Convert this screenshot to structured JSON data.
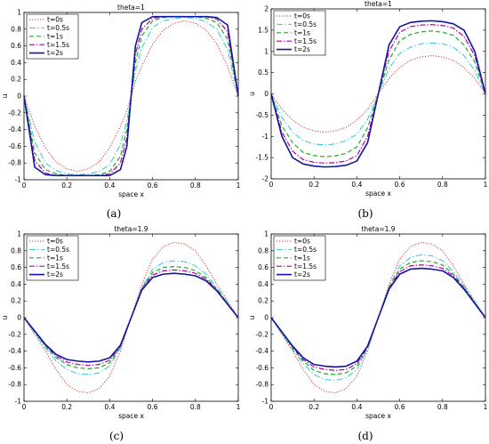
{
  "legend_entries": [
    "t=0s",
    "t=0.5s",
    "t=1s",
    "t=1.5s",
    "t=2s"
  ],
  "series_colors": [
    "#cc3333",
    "#2ec5e0",
    "#22aa22",
    "#b000b0",
    "#1414a0"
  ],
  "chart_data": [
    {
      "type": "line",
      "caption": "(a)",
      "title": "theta=1",
      "xlabel": "space x",
      "ylabel": "u",
      "xlim": [
        0,
        1
      ],
      "ylim": [
        -1,
        1
      ],
      "xticks": [
        "0",
        "0.2",
        "0.4",
        "0.6",
        "0.8",
        "1"
      ],
      "yticks": [
        "-1",
        "-0.8",
        "-0.6",
        "-0.4",
        "-0.2",
        "0",
        "0.2",
        "0.4",
        "0.6",
        "0.8",
        "1"
      ],
      "legend_position": "top-left",
      "x": [
        0,
        0.05,
        0.1,
        0.15,
        0.2,
        0.25,
        0.3,
        0.35,
        0.4,
        0.45,
        0.48,
        0.5,
        0.52,
        0.55,
        0.6,
        0.65,
        0.7,
        0.75,
        0.8,
        0.85,
        0.9,
        0.95,
        1
      ],
      "series": [
        {
          "name": "t=0s",
          "values": [
            0,
            -0.36,
            -0.62,
            -0.79,
            -0.87,
            -0.9,
            -0.87,
            -0.79,
            -0.62,
            -0.36,
            -0.18,
            0,
            0.18,
            0.36,
            0.62,
            0.79,
            0.87,
            0.9,
            0.87,
            0.79,
            0.62,
            0.36,
            0
          ]
        },
        {
          "name": "t=0.5s",
          "values": [
            0,
            -0.55,
            -0.8,
            -0.89,
            -0.93,
            -0.94,
            -0.93,
            -0.9,
            -0.82,
            -0.58,
            -0.3,
            0,
            0.3,
            0.58,
            0.82,
            0.9,
            0.93,
            0.94,
            0.93,
            0.89,
            0.8,
            0.55,
            0
          ]
        },
        {
          "name": "t=1s",
          "values": [
            0,
            -0.68,
            -0.88,
            -0.93,
            -0.95,
            -0.95,
            -0.95,
            -0.94,
            -0.9,
            -0.72,
            -0.4,
            0,
            0.4,
            0.72,
            0.9,
            0.94,
            0.95,
            0.95,
            0.95,
            0.93,
            0.88,
            0.68,
            0
          ]
        },
        {
          "name": "t=1.5s",
          "values": [
            0,
            -0.77,
            -0.92,
            -0.95,
            -0.95,
            -0.95,
            -0.95,
            -0.95,
            -0.93,
            -0.8,
            -0.5,
            0,
            0.5,
            0.8,
            0.93,
            0.95,
            0.95,
            0.95,
            0.95,
            0.95,
            0.92,
            0.77,
            0
          ]
        },
        {
          "name": "t=2s",
          "values": [
            0,
            -0.85,
            -0.94,
            -0.95,
            -0.95,
            -0.95,
            -0.95,
            -0.95,
            -0.95,
            -0.88,
            -0.6,
            0,
            0.6,
            0.88,
            0.95,
            0.95,
            0.95,
            0.95,
            0.95,
            0.95,
            0.94,
            0.85,
            0
          ]
        }
      ]
    },
    {
      "type": "line",
      "caption": "(b)",
      "title": "theta=1",
      "xlabel": "space x",
      "ylabel": "u",
      "xlim": [
        0,
        1
      ],
      "ylim": [
        -2,
        2
      ],
      "xticks": [
        "0",
        "0.2",
        "0.4",
        "0.6",
        "0.8",
        "1"
      ],
      "yticks": [
        "-2",
        "-1.5",
        "-1",
        "-0.5",
        "0",
        "0.5",
        "1",
        "1.5",
        "2"
      ],
      "legend_position": "top-left",
      "x": [
        0,
        0.05,
        0.1,
        0.15,
        0.2,
        0.25,
        0.3,
        0.35,
        0.4,
        0.45,
        0.5,
        0.55,
        0.6,
        0.65,
        0.7,
        0.75,
        0.8,
        0.85,
        0.9,
        0.95,
        1
      ],
      "series": [
        {
          "name": "t=0s",
          "values": [
            0,
            -0.36,
            -0.62,
            -0.79,
            -0.87,
            -0.9,
            -0.87,
            -0.79,
            -0.62,
            -0.36,
            0,
            0.36,
            0.62,
            0.79,
            0.87,
            0.9,
            0.87,
            0.79,
            0.62,
            0.36,
            0
          ]
        },
        {
          "name": "t=0.5s",
          "values": [
            0,
            -0.55,
            -0.9,
            -1.1,
            -1.18,
            -1.2,
            -1.18,
            -1.1,
            -0.95,
            -0.6,
            0,
            0.6,
            0.95,
            1.1,
            1.18,
            1.2,
            1.18,
            1.1,
            0.9,
            0.55,
            0
          ]
        },
        {
          "name": "t=1s",
          "values": [
            0,
            -0.75,
            -1.15,
            -1.38,
            -1.45,
            -1.48,
            -1.46,
            -1.4,
            -1.25,
            -0.8,
            0,
            0.8,
            1.25,
            1.4,
            1.46,
            1.48,
            1.45,
            1.38,
            1.15,
            0.75,
            0
          ]
        },
        {
          "name": "t=1.5s",
          "values": [
            0,
            -0.9,
            -1.35,
            -1.55,
            -1.61,
            -1.63,
            -1.62,
            -1.58,
            -1.45,
            -1.0,
            0,
            1.0,
            1.45,
            1.58,
            1.62,
            1.63,
            1.61,
            1.55,
            1.35,
            0.9,
            0
          ]
        },
        {
          "name": "t=2s",
          "values": [
            0,
            -1.0,
            -1.5,
            -1.65,
            -1.7,
            -1.72,
            -1.71,
            -1.68,
            -1.58,
            -1.15,
            0,
            1.15,
            1.58,
            1.68,
            1.71,
            1.72,
            1.7,
            1.65,
            1.5,
            1.0,
            0
          ]
        }
      ]
    },
    {
      "type": "line",
      "caption": "(c)",
      "title": "theta=1.9",
      "xlabel": "space x",
      "ylabel": "u",
      "xlim": [
        0,
        1
      ],
      "ylim": [
        -1,
        1
      ],
      "xticks": [
        "0",
        "0.2",
        "0.4",
        "0.6",
        "0.8",
        "1"
      ],
      "yticks": [
        "-1",
        "-0.8",
        "-0.6",
        "-0.4",
        "-0.2",
        "0",
        "0.2",
        "0.4",
        "0.6",
        "0.8",
        "1"
      ],
      "legend_position": "top-left",
      "x": [
        0,
        0.05,
        0.1,
        0.15,
        0.2,
        0.25,
        0.3,
        0.35,
        0.4,
        0.45,
        0.5,
        0.55,
        0.6,
        0.65,
        0.7,
        0.75,
        0.8,
        0.85,
        0.9,
        0.95,
        1
      ],
      "series": [
        {
          "name": "t=0s",
          "values": [
            0,
            -0.2,
            -0.4,
            -0.62,
            -0.8,
            -0.88,
            -0.9,
            -0.85,
            -0.7,
            -0.4,
            0,
            0.4,
            0.7,
            0.85,
            0.9,
            0.88,
            0.8,
            0.62,
            0.4,
            0.2,
            0
          ]
        },
        {
          "name": "t=0.5s",
          "values": [
            0,
            -0.18,
            -0.36,
            -0.52,
            -0.62,
            -0.67,
            -0.68,
            -0.66,
            -0.58,
            -0.36,
            0,
            0.36,
            0.58,
            0.66,
            0.68,
            0.67,
            0.62,
            0.52,
            0.36,
            0.18,
            0
          ]
        },
        {
          "name": "t=1s",
          "values": [
            0,
            -0.17,
            -0.34,
            -0.48,
            -0.56,
            -0.6,
            -0.61,
            -0.6,
            -0.54,
            -0.35,
            0,
            0.35,
            0.54,
            0.6,
            0.61,
            0.6,
            0.56,
            0.48,
            0.34,
            0.17,
            0
          ]
        },
        {
          "name": "t=1.5s",
          "values": [
            0,
            -0.16,
            -0.33,
            -0.46,
            -0.53,
            -0.56,
            -0.57,
            -0.56,
            -0.51,
            -0.34,
            0,
            0.34,
            0.51,
            0.56,
            0.57,
            0.56,
            0.53,
            0.46,
            0.33,
            0.16,
            0
          ]
        },
        {
          "name": "t=2s",
          "values": [
            0,
            -0.16,
            -0.32,
            -0.44,
            -0.5,
            -0.52,
            -0.53,
            -0.52,
            -0.48,
            -0.33,
            0,
            0.33,
            0.48,
            0.52,
            0.53,
            0.52,
            0.5,
            0.44,
            0.32,
            0.16,
            0
          ]
        }
      ]
    },
    {
      "type": "line",
      "caption": "(d)",
      "title": "theta=1.9",
      "xlabel": "space x",
      "ylabel": "u",
      "xlim": [
        0,
        1
      ],
      "ylim": [
        -1,
        1
      ],
      "xticks": [
        "0",
        "0.2",
        "0.4",
        "0.6",
        "0.8",
        "1"
      ],
      "yticks": [
        "-1",
        "-0.8",
        "-0.6",
        "-0.4",
        "-0.2",
        "0",
        "0.2",
        "0.4",
        "0.6",
        "0.8",
        "1"
      ],
      "legend_position": "top-left",
      "x": [
        0,
        0.05,
        0.1,
        0.15,
        0.2,
        0.25,
        0.3,
        0.35,
        0.4,
        0.45,
        0.5,
        0.55,
        0.6,
        0.65,
        0.7,
        0.75,
        0.8,
        0.85,
        0.9,
        0.95,
        1
      ],
      "series": [
        {
          "name": "t=0s",
          "values": [
            0,
            -0.2,
            -0.4,
            -0.62,
            -0.8,
            -0.88,
            -0.9,
            -0.85,
            -0.7,
            -0.4,
            0,
            0.4,
            0.7,
            0.85,
            0.9,
            0.88,
            0.8,
            0.62,
            0.4,
            0.2,
            0
          ]
        },
        {
          "name": "t=0.5s",
          "values": [
            0,
            -0.19,
            -0.38,
            -0.55,
            -0.68,
            -0.74,
            -0.75,
            -0.72,
            -0.62,
            -0.37,
            0,
            0.37,
            0.62,
            0.72,
            0.75,
            0.74,
            0.68,
            0.55,
            0.38,
            0.19,
            0
          ]
        },
        {
          "name": "t=1s",
          "values": [
            0,
            -0.18,
            -0.36,
            -0.52,
            -0.63,
            -0.67,
            -0.68,
            -0.66,
            -0.58,
            -0.36,
            0,
            0.36,
            0.58,
            0.66,
            0.68,
            0.67,
            0.63,
            0.52,
            0.36,
            0.18,
            0
          ]
        },
        {
          "name": "t=1.5s",
          "values": [
            0,
            -0.17,
            -0.35,
            -0.5,
            -0.59,
            -0.62,
            -0.63,
            -0.62,
            -0.55,
            -0.35,
            0,
            0.35,
            0.55,
            0.62,
            0.63,
            0.62,
            0.59,
            0.5,
            0.35,
            0.17,
            0
          ]
        },
        {
          "name": "t=2s",
          "values": [
            0,
            -0.17,
            -0.34,
            -0.48,
            -0.56,
            -0.58,
            -0.59,
            -0.58,
            -0.52,
            -0.34,
            0,
            0.34,
            0.52,
            0.58,
            0.59,
            0.58,
            0.56,
            0.48,
            0.34,
            0.17,
            0
          ]
        }
      ]
    }
  ]
}
